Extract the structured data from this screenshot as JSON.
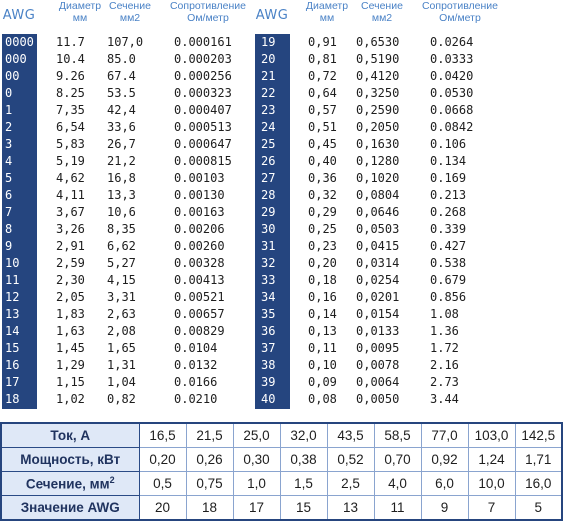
{
  "header": {
    "awg": "AWG",
    "diameter": [
      "Диаметр",
      "мм"
    ],
    "section": [
      "Сечение",
      "мм2"
    ],
    "resistance": [
      "Сопротивление",
      "Ом/метр"
    ]
  },
  "awg_table_left": [
    [
      "0000",
      "11.7",
      "107,0",
      "0.000161"
    ],
    [
      "000",
      "10.4",
      "85.0",
      "0.000203"
    ],
    [
      "00",
      "9.26",
      "67.4",
      "0.000256"
    ],
    [
      "0",
      "8.25",
      "53.5",
      "0.000323"
    ],
    [
      "1",
      "7,35",
      "42,4",
      "0.000407"
    ],
    [
      "2",
      "6,54",
      "33,6",
      "0.000513"
    ],
    [
      "3",
      "5,83",
      "26,7",
      "0.000647"
    ],
    [
      "4",
      "5,19",
      "21,2",
      "0.000815"
    ],
    [
      "5",
      "4,62",
      "16,8",
      "0.00103"
    ],
    [
      "6",
      "4,11",
      "13,3",
      "0.00130"
    ],
    [
      "7",
      "3,67",
      "10,6",
      "0.00163"
    ],
    [
      "8",
      "3,26",
      "8,35",
      "0.00206"
    ],
    [
      "9",
      "2,91",
      "6,62",
      "0.00260"
    ],
    [
      "10",
      "2,59",
      "5,27",
      "0.00328"
    ],
    [
      "11",
      "2,30",
      "4,15",
      "0.00413"
    ],
    [
      "12",
      "2,05",
      "3,31",
      "0.00521"
    ],
    [
      "13",
      "1,83",
      "2,63",
      "0.00657"
    ],
    [
      "14",
      "1,63",
      "2,08",
      "0.00829"
    ],
    [
      "15",
      "1,45",
      "1,65",
      "0.0104"
    ],
    [
      "16",
      "1,29",
      "1,31",
      "0.0132"
    ],
    [
      "17",
      "1,15",
      "1,04",
      "0.0166"
    ],
    [
      "18",
      "1,02",
      "0,82",
      "0.0210"
    ]
  ],
  "awg_table_right": [
    [
      "19",
      "0,91",
      "0,6530",
      "0.0264"
    ],
    [
      "20",
      "0,81",
      "0,5190",
      "0.0333"
    ],
    [
      "21",
      "0,72",
      "0,4120",
      "0.0420"
    ],
    [
      "22",
      "0,64",
      "0,3250",
      "0.0530"
    ],
    [
      "23",
      "0,57",
      "0,2590",
      "0.0668"
    ],
    [
      "24",
      "0,51",
      "0,2050",
      "0.0842"
    ],
    [
      "25",
      "0,45",
      "0,1630",
      "0.106"
    ],
    [
      "26",
      "0,40",
      "0,1280",
      "0.134"
    ],
    [
      "27",
      "0,36",
      "0,1020",
      "0.169"
    ],
    [
      "28",
      "0,32",
      "0,0804",
      "0.213"
    ],
    [
      "29",
      "0,29",
      "0,0646",
      "0.268"
    ],
    [
      "30",
      "0,25",
      "0,0503",
      "0.339"
    ],
    [
      "31",
      "0,23",
      "0,0415",
      "0.427"
    ],
    [
      "32",
      "0,20",
      "0,0314",
      "0.538"
    ],
    [
      "33",
      "0,18",
      "0,0254",
      "0.679"
    ],
    [
      "34",
      "0,16",
      "0,0201",
      "0.856"
    ],
    [
      "35",
      "0,14",
      "0,0154",
      "1.08"
    ],
    [
      "36",
      "0,13",
      "0,0133",
      "1.36"
    ],
    [
      "37",
      "0,11",
      "0,0095",
      "1.72"
    ],
    [
      "38",
      "0,10",
      "0,0078",
      "2.16"
    ],
    [
      "39",
      "0,09",
      "0,0064",
      "2.73"
    ],
    [
      "40",
      "0,08",
      "0,0050",
      "3.44"
    ]
  ],
  "current_table": {
    "rows": [
      {
        "label": "Ток, А",
        "values": [
          "16,5",
          "21,5",
          "25,0",
          "32,0",
          "43,5",
          "58,5",
          "77,0",
          "103,0",
          "142,5"
        ]
      },
      {
        "label": "Мощность, кВт",
        "values": [
          "0,20",
          "0,26",
          "0,30",
          "0,38",
          "0,52",
          "0,70",
          "0,92",
          "1,24",
          "1,71"
        ]
      },
      {
        "label": "Сечение, мм",
        "label_sup": "2",
        "values": [
          "0,5",
          "0,75",
          "1,0",
          "1,5",
          "2,5",
          "4,0",
          "6,0",
          "10,0",
          "16,0"
        ]
      },
      {
        "label": "Значение AWG",
        "values": [
          "20",
          "18",
          "17",
          "15",
          "13",
          "11",
          "9",
          "7",
          "5"
        ]
      }
    ]
  },
  "colors": {
    "awg_column_bg": "#25457f",
    "header_text": "#4a82c6",
    "label_cell_bg": "#dfe8f7",
    "border": "#26457e"
  }
}
